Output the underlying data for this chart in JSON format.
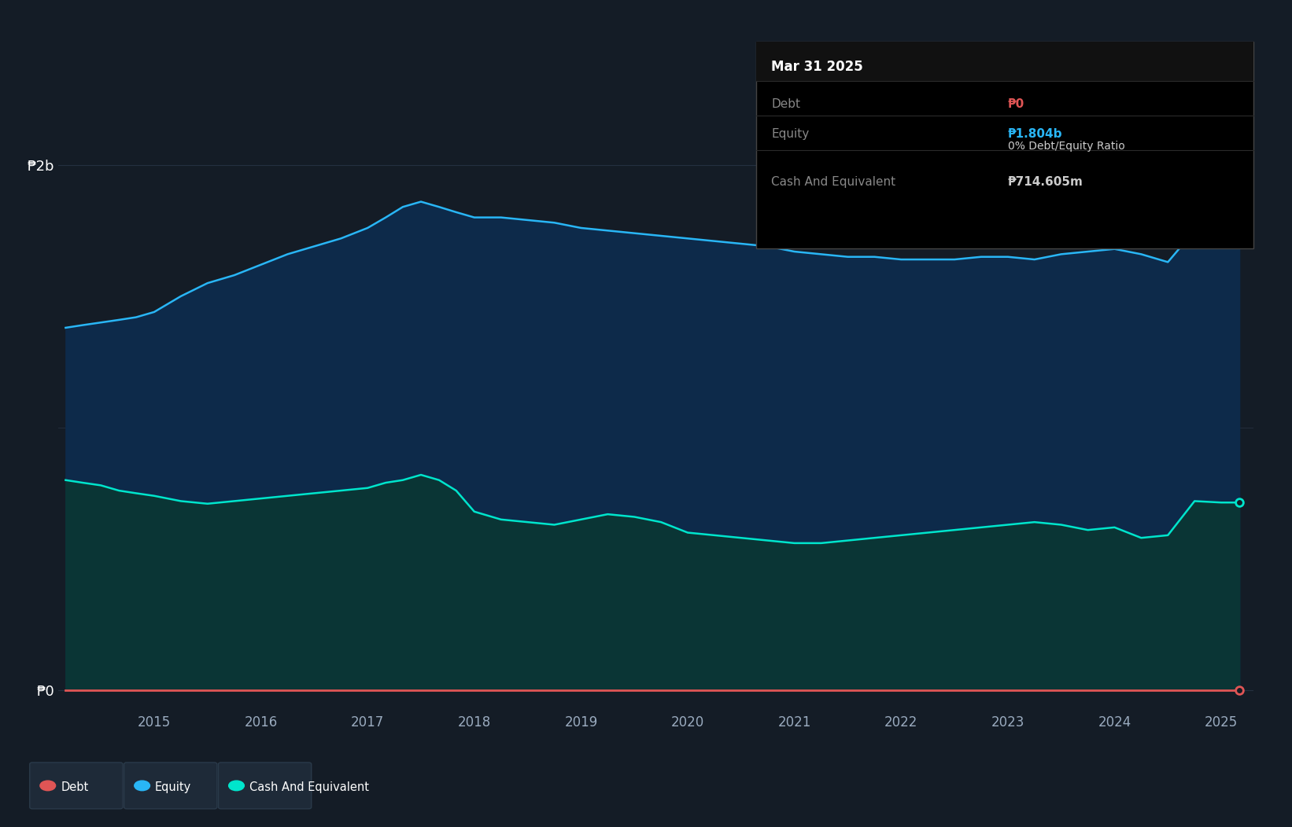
{
  "bg_color": "#141c26",
  "plot_bg_color": "#141c26",
  "equity_color": "#29b6f6",
  "cash_color": "#00e5cc",
  "debt_color": "#e05555",
  "equity_fill": "#0d2a4a",
  "cash_fill": "#0a3535",
  "grid_color": "#253040",
  "y_label_p2b": "₱2b",
  "y_label_p0": "₱0",
  "ylim_min": -80000000.0,
  "ylim_max": 2250000000.0,
  "p2b_value": 2000000000.0,
  "mid_grid": 1000000000.0,
  "equity_data": {
    "x": [
      2014.17,
      2014.33,
      2014.5,
      2014.67,
      2014.83,
      2015.0,
      2015.25,
      2015.5,
      2015.75,
      2016.0,
      2016.25,
      2016.5,
      2016.75,
      2017.0,
      2017.17,
      2017.33,
      2017.5,
      2017.67,
      2017.83,
      2018.0,
      2018.25,
      2018.5,
      2018.75,
      2019.0,
      2019.25,
      2019.5,
      2019.75,
      2020.0,
      2020.25,
      2020.5,
      2020.75,
      2021.0,
      2021.25,
      2021.5,
      2021.75,
      2022.0,
      2022.25,
      2022.5,
      2022.75,
      2023.0,
      2023.25,
      2023.5,
      2023.75,
      2024.0,
      2024.25,
      2024.5,
      2024.75,
      2025.0,
      2025.17
    ],
    "y": [
      1380000000.0,
      1390000000.0,
      1400000000.0,
      1410000000.0,
      1420000000.0,
      1440000000.0,
      1500000000.0,
      1550000000.0,
      1580000000.0,
      1620000000.0,
      1660000000.0,
      1690000000.0,
      1720000000.0,
      1760000000.0,
      1800000000.0,
      1840000000.0,
      1860000000.0,
      1840000000.0,
      1820000000.0,
      1800000000.0,
      1800000000.0,
      1790000000.0,
      1780000000.0,
      1760000000.0,
      1750000000.0,
      1740000000.0,
      1730000000.0,
      1720000000.0,
      1710000000.0,
      1700000000.0,
      1690000000.0,
      1670000000.0,
      1660000000.0,
      1650000000.0,
      1650000000.0,
      1640000000.0,
      1640000000.0,
      1640000000.0,
      1650000000.0,
      1650000000.0,
      1640000000.0,
      1660000000.0,
      1670000000.0,
      1680000000.0,
      1660000000.0,
      1630000000.0,
      1750000000.0,
      1804000000.0,
      1804000000.0
    ]
  },
  "cash_data": {
    "x": [
      2014.17,
      2014.33,
      2014.5,
      2014.67,
      2014.83,
      2015.0,
      2015.25,
      2015.5,
      2015.75,
      2016.0,
      2016.25,
      2016.5,
      2016.75,
      2017.0,
      2017.17,
      2017.33,
      2017.5,
      2017.67,
      2017.83,
      2018.0,
      2018.25,
      2018.5,
      2018.75,
      2019.0,
      2019.25,
      2019.5,
      2019.75,
      2020.0,
      2020.25,
      2020.5,
      2020.75,
      2021.0,
      2021.25,
      2021.5,
      2021.75,
      2022.0,
      2022.25,
      2022.5,
      2022.75,
      2023.0,
      2023.25,
      2023.5,
      2023.75,
      2024.0,
      2024.25,
      2024.5,
      2024.75,
      2025.0,
      2025.17
    ],
    "y": [
      800000000.0,
      790000000.0,
      780000000.0,
      760000000.0,
      750000000.0,
      740000000.0,
      720000000.0,
      710000000.0,
      720000000.0,
      730000000.0,
      740000000.0,
      750000000.0,
      760000000.0,
      770000000.0,
      790000000.0,
      800000000.0,
      820000000.0,
      800000000.0,
      760000000.0,
      680000000.0,
      650000000.0,
      640000000.0,
      630000000.0,
      650000000.0,
      670000000.0,
      660000000.0,
      640000000.0,
      600000000.0,
      590000000.0,
      580000000.0,
      570000000.0,
      560000000.0,
      560000000.0,
      570000000.0,
      580000000.0,
      590000000.0,
      600000000.0,
      610000000.0,
      620000000.0,
      630000000.0,
      640000000.0,
      630000000.0,
      610000000.0,
      620000000.0,
      580000000.0,
      590000000.0,
      720000000.0,
      714600000.0,
      714600000.0
    ]
  },
  "tooltip": {
    "title": "Mar 31 2025",
    "rows": [
      {
        "label": "Debt",
        "value": "₱0",
        "value_color": "#e05555",
        "label_color": "#888888"
      },
      {
        "label": "Equity",
        "value": "₱1.804b",
        "value_color": "#29b6f6",
        "label_color": "#888888"
      },
      {
        "label": "",
        "value": "0% Debt/Equity Ratio",
        "value_color": "#cccccc",
        "label_color": "#888888"
      },
      {
        "label": "Cash And Equivalent",
        "value": "₱714.605m",
        "value_color": "#cccccc",
        "label_color": "#888888"
      }
    ]
  },
  "legend_items": [
    {
      "label": "Debt",
      "color": "#e05555"
    },
    {
      "label": "Equity",
      "color": "#29b6f6"
    },
    {
      "label": "Cash And Equivalent",
      "color": "#00e5cc"
    }
  ]
}
